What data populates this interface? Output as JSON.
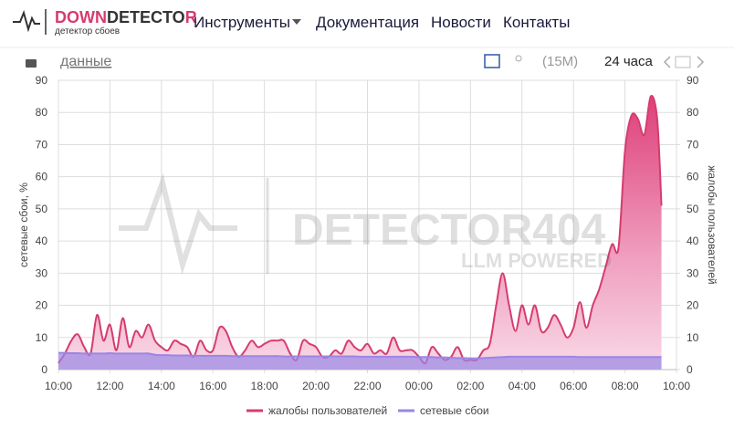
{
  "header": {
    "brand": [
      "DOWN",
      "DETECTO",
      "R"
    ],
    "tagline": "детектор сбоев",
    "nav": [
      "Инструменты",
      "Документация",
      "Новости",
      "Контакты"
    ]
  },
  "toolbar": {
    "data_link": "данные",
    "interval": "(15М)",
    "range": "24 часа"
  },
  "watermark": [
    "DETECTOR404",
    "LLM POWERED"
  ],
  "chart_data": {
    "type": "area",
    "y_label": "сетевые сбои, %",
    "y2_label": "жалобы пользователей",
    "x": [
      "10:00",
      "10:15",
      "10:30",
      "10:45",
      "11:00",
      "11:15",
      "11:30",
      "11:45",
      "12:00",
      "12:15",
      "12:30",
      "12:45",
      "13:00",
      "13:15",
      "13:30",
      "13:45",
      "14:00",
      "14:15",
      "14:30",
      "14:45",
      "15:00",
      "15:15",
      "15:30",
      "15:45",
      "16:00",
      "16:15",
      "16:30",
      "16:45",
      "17:00",
      "17:15",
      "17:30",
      "17:45",
      "18:00",
      "18:15",
      "18:30",
      "18:45",
      "19:00",
      "19:15",
      "19:30",
      "19:45",
      "20:00",
      "20:15",
      "20:30",
      "20:45",
      "21:00",
      "21:15",
      "21:30",
      "21:45",
      "22:00",
      "22:15",
      "22:30",
      "22:45",
      "23:00",
      "23:15",
      "23:30",
      "23:45",
      "00:00",
      "00:15",
      "00:30",
      "00:45",
      "01:00",
      "01:15",
      "01:30",
      "01:45",
      "02:00",
      "02:15",
      "02:30",
      "02:45",
      "03:00",
      "03:15",
      "03:30",
      "03:45",
      "04:00",
      "04:15",
      "04:30",
      "04:45",
      "05:00",
      "05:15",
      "05:30",
      "05:45",
      "06:00",
      "06:15",
      "06:30",
      "06:45",
      "07:00",
      "07:15",
      "07:30",
      "07:45",
      "08:00",
      "08:15",
      "08:30",
      "08:45",
      "09:00",
      "09:15",
      "09:25"
    ],
    "series": [
      {
        "name": "жалобы пользователей",
        "color": "#d63c6e",
        "axis": "y2",
        "values": [
          2,
          5,
          9,
          11,
          7,
          5,
          17,
          9,
          14,
          6,
          16,
          7,
          12,
          10,
          14,
          9,
          7,
          6,
          9,
          8,
          7,
          4,
          9,
          6,
          6,
          13,
          12,
          7,
          4,
          6,
          9,
          7,
          8,
          9,
          9,
          9,
          5,
          3,
          9,
          8,
          7,
          4,
          4,
          6,
          5,
          9,
          7,
          6,
          8,
          5,
          6,
          5,
          10,
          6,
          6,
          6,
          4,
          2,
          7,
          5,
          3,
          4,
          7,
          3,
          3,
          3,
          6,
          8,
          20,
          30,
          20,
          12,
          20,
          14,
          20,
          12,
          13,
          17,
          14,
          10,
          13,
          21,
          13,
          20,
          25,
          32,
          39,
          38,
          68,
          79,
          78,
          73,
          85,
          78,
          51
        ]
      },
      {
        "name": "сетевые сбои",
        "color": "#9a86e6",
        "values": [
          5.2,
          5.2,
          5.1,
          5.1,
          5,
          5,
          5,
          5,
          5.1,
          5,
          5,
          5,
          5,
          5,
          5,
          4.6,
          4.5,
          4.5,
          4.4,
          4.4,
          4.4,
          4.3,
          4.3,
          4.3,
          4.3,
          4.3,
          4.3,
          4.2,
          4.2,
          4.2,
          4.2,
          4.2,
          4.2,
          4.2,
          4.2,
          4.1,
          4.1,
          4.1,
          4.1,
          4.1,
          4.1,
          4.1,
          4.1,
          4.1,
          4.1,
          4.1,
          4.1,
          4,
          4,
          4,
          4,
          4,
          4,
          4,
          4,
          4,
          3.9,
          3.9,
          3.9,
          3.8,
          3.8,
          3.7,
          3.6,
          3.6,
          3.5,
          3.5,
          3.6,
          3.7,
          3.8,
          3.9,
          4,
          4,
          4,
          4,
          4,
          4,
          4,
          4,
          4,
          4,
          4,
          3.9,
          3.9,
          3.9,
          3.9,
          3.9,
          3.9,
          3.9,
          3.9,
          3.9,
          3.9,
          3.9,
          3.9,
          3.9,
          3.9
        ]
      }
    ],
    "xlim": [
      "10:00",
      "10:00"
    ],
    "xticks": [
      "10:00",
      "12:00",
      "14:00",
      "16:00",
      "18:00",
      "20:00",
      "22:00",
      "00:00",
      "02:00",
      "04:00",
      "06:00",
      "08:00",
      "10:00"
    ],
    "ylim": [
      0,
      90
    ],
    "yticks": [
      0,
      10,
      20,
      30,
      40,
      50,
      60,
      70,
      80,
      90
    ],
    "y2lim": [
      0,
      90
    ],
    "y2ticks": [
      0,
      10,
      20,
      30,
      40,
      50,
      60,
      70,
      80,
      90
    ],
    "grid": true
  }
}
